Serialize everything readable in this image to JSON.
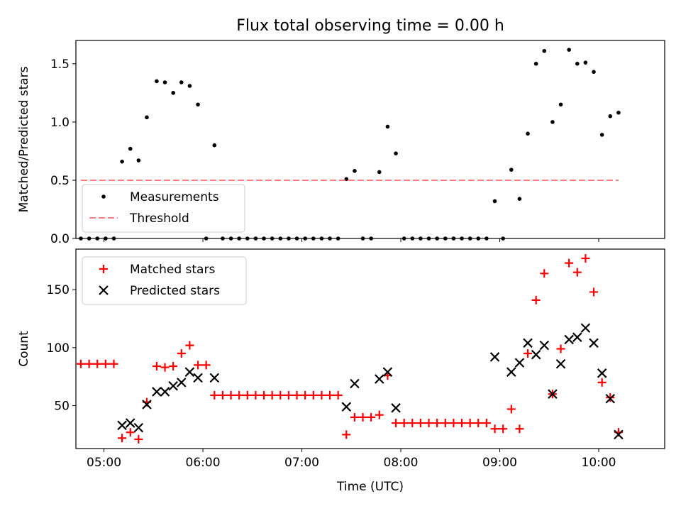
{
  "title": "Flux total observing time = 0.00 h",
  "chart_data": [
    {
      "type": "scatter",
      "ylabel": "Matched/Predicted stars",
      "ylim": [
        0,
        1.7
      ],
      "yticks": [
        0,
        0.5,
        1.0,
        1.5
      ],
      "ytick_labels": [
        "0.0",
        "0.5",
        "1.0",
        "1.5"
      ],
      "xlim": [
        "04:43",
        "10:40"
      ],
      "xticks": [
        "05:00",
        "06:00",
        "07:00",
        "08:00",
        "09:00",
        "10:00"
      ],
      "legend": {
        "position": "lower-left",
        "entries": [
          "Measurements",
          "Threshold"
        ]
      },
      "series": [
        {
          "name": "Measurements",
          "marker": "dot",
          "color": "#000000",
          "points": [
            [
              "04:46",
              0
            ],
            [
              "04:51",
              0
            ],
            [
              "04:56",
              0
            ],
            [
              "05:01",
              0
            ],
            [
              "05:06",
              0
            ],
            [
              "05:11",
              0.66
            ],
            [
              "05:16",
              0.77
            ],
            [
              "05:21",
              0.67
            ],
            [
              "05:26",
              1.04
            ],
            [
              "05:32",
              1.35
            ],
            [
              "05:37",
              1.34
            ],
            [
              "05:42",
              1.25
            ],
            [
              "05:47",
              1.34
            ],
            [
              "05:52",
              1.31
            ],
            [
              "05:57",
              1.15
            ],
            [
              "06:02",
              0
            ],
            [
              "06:07",
              0.8
            ],
            [
              "06:12",
              0
            ],
            [
              "06:17",
              0
            ],
            [
              "06:22",
              0
            ],
            [
              "06:27",
              0
            ],
            [
              "06:32",
              0
            ],
            [
              "06:37",
              0
            ],
            [
              "06:42",
              0
            ],
            [
              "06:47",
              0
            ],
            [
              "06:52",
              0
            ],
            [
              "06:57",
              0
            ],
            [
              "07:02",
              0
            ],
            [
              "07:07",
              0
            ],
            [
              "07:12",
              0
            ],
            [
              "07:17",
              0
            ],
            [
              "07:22",
              0
            ],
            [
              "07:27",
              0.51
            ],
            [
              "07:32",
              0.58
            ],
            [
              "07:37",
              0
            ],
            [
              "07:42",
              0
            ],
            [
              "07:47",
              0.57
            ],
            [
              "07:52",
              0.96
            ],
            [
              "07:57",
              0.73
            ],
            [
              "08:02",
              0
            ],
            [
              "08:07",
              0
            ],
            [
              "08:12",
              0
            ],
            [
              "08:17",
              0
            ],
            [
              "08:22",
              0
            ],
            [
              "08:27",
              0
            ],
            [
              "08:32",
              0
            ],
            [
              "08:37",
              0
            ],
            [
              "08:42",
              0
            ],
            [
              "08:47",
              0
            ],
            [
              "08:52",
              0
            ],
            [
              "08:57",
              0.32
            ],
            [
              "09:02",
              0
            ],
            [
              "09:07",
              0.59
            ],
            [
              "09:12",
              0.34
            ],
            [
              "09:17",
              0.9
            ],
            [
              "09:22",
              1.5
            ],
            [
              "09:27",
              1.61
            ],
            [
              "09:32",
              1.0
            ],
            [
              "09:37",
              1.15
            ],
            [
              "09:42",
              1.62
            ],
            [
              "09:47",
              1.5
            ],
            [
              "09:52",
              1.51
            ],
            [
              "09:57",
              1.43
            ],
            [
              "10:02",
              0.89
            ],
            [
              "10:07",
              1.05
            ],
            [
              "10:12",
              1.08
            ]
          ]
        },
        {
          "name": "Threshold",
          "style": "dashed",
          "color": "#ff7f7f",
          "points": [
            [
              "04:46",
              0.5
            ],
            [
              "10:12",
              0.5
            ]
          ]
        }
      ]
    },
    {
      "type": "scatter",
      "ylabel": "Count",
      "xlabel": "Time (UTC)",
      "ylim": [
        13,
        185
      ],
      "yticks": [
        50,
        100,
        150
      ],
      "ytick_labels": [
        "50",
        "100",
        "150"
      ],
      "xlim": [
        "04:43",
        "10:40"
      ],
      "xticks": [
        "05:00",
        "06:00",
        "07:00",
        "08:00",
        "09:00",
        "10:00"
      ],
      "xtick_labels": [
        "05:00",
        "06:00",
        "07:00",
        "08:00",
        "09:00",
        "10:00"
      ],
      "legend": {
        "position": "upper-left",
        "entries": [
          "Matched stars",
          "Predicted stars"
        ]
      },
      "series": [
        {
          "name": "Matched stars",
          "marker": "plus",
          "color": "#ff0000",
          "points": [
            [
              "04:46",
              86
            ],
            [
              "04:51",
              86
            ],
            [
              "04:56",
              86
            ],
            [
              "05:01",
              86
            ],
            [
              "05:06",
              86
            ],
            [
              "05:11",
              22
            ],
            [
              "05:16",
              27
            ],
            [
              "05:21",
              21
            ],
            [
              "05:26",
              53
            ],
            [
              "05:32",
              84
            ],
            [
              "05:37",
              83
            ],
            [
              "05:42",
              84
            ],
            [
              "05:47",
              95
            ],
            [
              "05:52",
              102
            ],
            [
              "05:57",
              85
            ],
            [
              "06:02",
              85
            ],
            [
              "06:07",
              59
            ],
            [
              "06:12",
              59
            ],
            [
              "06:17",
              59
            ],
            [
              "06:22",
              59
            ],
            [
              "06:27",
              59
            ],
            [
              "06:32",
              59
            ],
            [
              "06:37",
              59
            ],
            [
              "06:42",
              59
            ],
            [
              "06:47",
              59
            ],
            [
              "06:52",
              59
            ],
            [
              "06:57",
              59
            ],
            [
              "07:02",
              59
            ],
            [
              "07:07",
              59
            ],
            [
              "07:12",
              59
            ],
            [
              "07:17",
              59
            ],
            [
              "07:22",
              59
            ],
            [
              "07:27",
              25
            ],
            [
              "07:32",
              40
            ],
            [
              "07:37",
              40
            ],
            [
              "07:42",
              40
            ],
            [
              "07:47",
              42
            ],
            [
              "07:52",
              76
            ],
            [
              "07:57",
              35
            ],
            [
              "08:02",
              35
            ],
            [
              "08:07",
              35
            ],
            [
              "08:12",
              35
            ],
            [
              "08:17",
              35
            ],
            [
              "08:22",
              35
            ],
            [
              "08:27",
              35
            ],
            [
              "08:32",
              35
            ],
            [
              "08:37",
              35
            ],
            [
              "08:42",
              35
            ],
            [
              "08:47",
              35
            ],
            [
              "08:52",
              35
            ],
            [
              "08:57",
              30
            ],
            [
              "09:02",
              30
            ],
            [
              "09:07",
              47
            ],
            [
              "09:12",
              30
            ],
            [
              "09:17",
              95
            ],
            [
              "09:22",
              141
            ],
            [
              "09:27",
              164
            ],
            [
              "09:32",
              60
            ],
            [
              "09:37",
              99
            ],
            [
              "09:42",
              173
            ],
            [
              "09:47",
              165
            ],
            [
              "09:52",
              177
            ],
            [
              "09:57",
              148
            ],
            [
              "10:02",
              70
            ],
            [
              "10:07",
              57
            ],
            [
              "10:12",
              27
            ]
          ]
        },
        {
          "name": "Predicted stars",
          "marker": "x",
          "color": "#000000",
          "points": [
            [
              "05:11",
              33
            ],
            [
              "05:16",
              35
            ],
            [
              "05:21",
              31
            ],
            [
              "05:26",
              51
            ],
            [
              "05:32",
              62
            ],
            [
              "05:37",
              62
            ],
            [
              "05:42",
              67
            ],
            [
              "05:47",
              70
            ],
            [
              "05:52",
              79
            ],
            [
              "05:57",
              74
            ],
            [
              "06:07",
              74
            ],
            [
              "07:27",
              49
            ],
            [
              "07:32",
              69
            ],
            [
              "07:47",
              73
            ],
            [
              "07:52",
              79
            ],
            [
              "07:57",
              48
            ],
            [
              "08:57",
              92
            ],
            [
              "09:07",
              79
            ],
            [
              "09:12",
              87
            ],
            [
              "09:17",
              104
            ],
            [
              "09:22",
              94
            ],
            [
              "09:27",
              102
            ],
            [
              "09:32",
              60
            ],
            [
              "09:37",
              86
            ],
            [
              "09:42",
              107
            ],
            [
              "09:47",
              109
            ],
            [
              "09:52",
              117
            ],
            [
              "09:57",
              104
            ],
            [
              "10:02",
              78
            ],
            [
              "10:07",
              56
            ],
            [
              "10:12",
              25
            ]
          ]
        }
      ]
    }
  ]
}
